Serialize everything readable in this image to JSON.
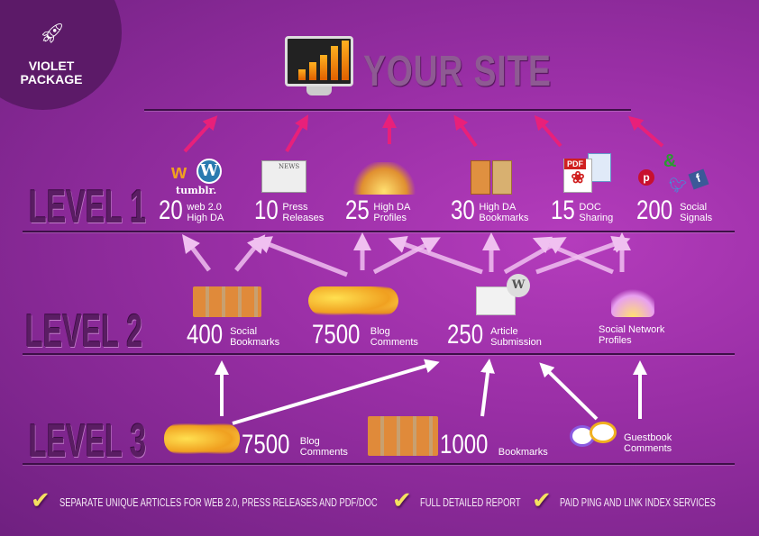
{
  "badge": {
    "line1": "VIOLET",
    "line2": "PACKAGE"
  },
  "site": {
    "title": "YOUR SITE"
  },
  "levels": [
    "LEVEL 1",
    "LEVEL 2",
    "LEVEL 3"
  ],
  "level1": [
    {
      "num": "20",
      "l1": "web 2.0",
      "l2": "High DA",
      "icon": "web2-icons (weebly, wordpress, tumblr)",
      "icon_text": "tumblr."
    },
    {
      "num": "10",
      "l1": "Press",
      "l2": "Releases",
      "icon": "newspaper-icon",
      "icon_text": "NEWS"
    },
    {
      "num": "25",
      "l1": "High DA",
      "l2": "Profiles",
      "icon": "people-icon"
    },
    {
      "num": "30",
      "l1": "High DA",
      "l2": "Bookmarks",
      "icon": "bookmark-books-icon"
    },
    {
      "num": "15",
      "l1": "DOC",
      "l2": "Sharing",
      "icon": "pdf-doc-icon",
      "icon_text": "PDF"
    },
    {
      "num": "200",
      "l1": "Social",
      "l2": "Signals",
      "icon": "social-icons"
    }
  ],
  "level2": [
    {
      "num": "400",
      "l1": "Social",
      "l2": "Bookmarks",
      "icon": "bookmark-icons"
    },
    {
      "num": "7500",
      "l1": "Blog",
      "l2": "Comments",
      "icon": "speech-bubbles-icon"
    },
    {
      "num": "250",
      "l1": "Article",
      "l2": "Submission",
      "icon": "wiki-articles-icon"
    },
    {
      "num": "",
      "l1": "Social Network",
      "l2": "Profiles",
      "icon": "people-icon"
    }
  ],
  "level3": [
    {
      "num": "7500",
      "l1": "Blog",
      "l2": "Comments",
      "icon": "speech-bubbles-icon"
    },
    {
      "num": "1000",
      "l1": "Bookmarks",
      "l2": "",
      "icon": "bookmark-icons"
    },
    {
      "num": "",
      "l1": "Guestbook",
      "l2": "Comments",
      "icon": "chat-bubbles-icon"
    }
  ],
  "footer": [
    "SEPARATE UNIQUE ARTICLES FOR WEB 2.0, PRESS RELEASES AND PDF/DOC",
    "FULL DETAILED REPORT",
    "PAID PING AND LINK INDEX SERVICES"
  ],
  "colors": {
    "background": "#9a2fa6",
    "arrow_pink": "#e8207a",
    "arrow_light": "#f0b8f0",
    "check": "#f4e060"
  }
}
